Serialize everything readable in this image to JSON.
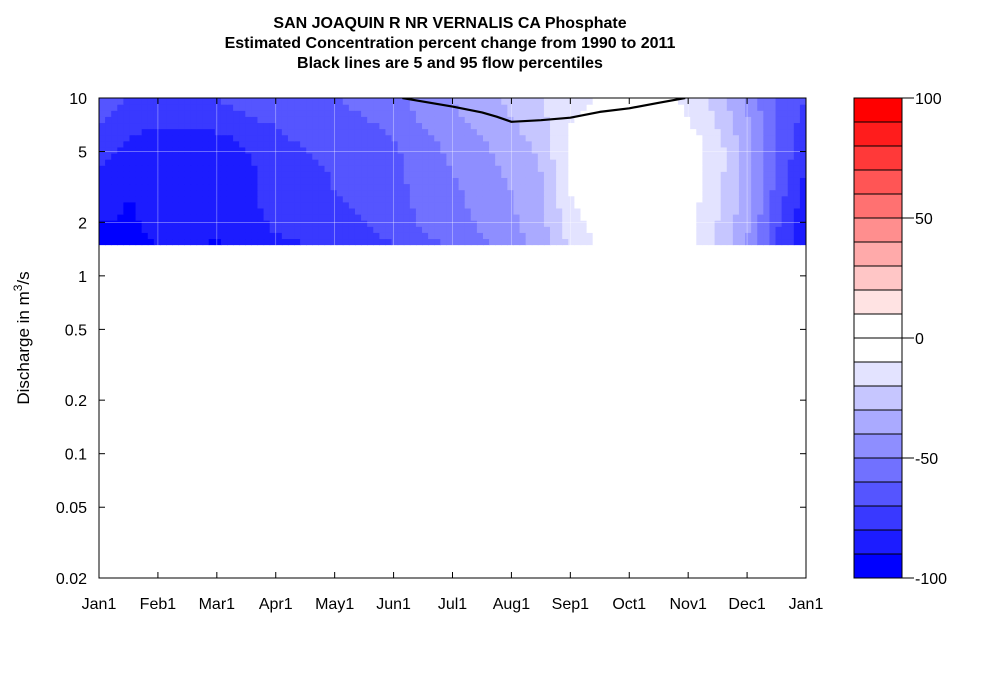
{
  "title_lines": [
    "SAN JOAQUIN R NR VERNALIS CA  Phosphate",
    "Estimated Concentration percent change from 1990 to 2011",
    "Black lines are 5 and 95 flow percentiles"
  ],
  "chart_data": {
    "type": "heatmap",
    "title": "SAN JOAQUIN R NR VERNALIS CA  Phosphate",
    "subtitle": [
      "Estimated Concentration percent change from 1990 to 2011",
      "Black lines are 5 and 95 flow percentiles"
    ],
    "xlabel": "",
    "ylabel": "Discharge in m³/s",
    "ylabel_parts": {
      "pre": "Discharge in m",
      "sup": "3",
      "post": "/s"
    },
    "y_scale": "log",
    "ylim": [
      0.02,
      10
    ],
    "x_ticks": [
      "Jan1",
      "Feb1",
      "Mar1",
      "Apr1",
      "May1",
      "Jun1",
      "Jul1",
      "Aug1",
      "Sep1",
      "Oct1",
      "Nov1",
      "Dec1",
      "Jan1"
    ],
    "y_ticks": [
      {
        "value": 10,
        "label": "10"
      },
      {
        "value": 5,
        "label": "5"
      },
      {
        "value": 2,
        "label": "2"
      },
      {
        "value": 1,
        "label": "1"
      },
      {
        "value": 0.5,
        "label": "0.5"
      },
      {
        "value": 0.2,
        "label": "0.2"
      },
      {
        "value": 0.1,
        "label": "0.1"
      },
      {
        "value": 0.05,
        "label": "0.05"
      },
      {
        "value": 0.02,
        "label": "0.02"
      }
    ],
    "grid": true,
    "data_discharge_range": [
      1.5,
      10
    ],
    "x_months": [
      0,
      0.5,
      1,
      1.5,
      2,
      2.5,
      3,
      3.5,
      4,
      4.5,
      5,
      5.5,
      6,
      6.5,
      7,
      7.5,
      8,
      8.5,
      9,
      9.5,
      10,
      10.5,
      11,
      11.5,
      12
    ],
    "y_discharge": [
      1.5,
      2,
      3,
      4,
      5,
      6,
      7,
      8,
      10
    ],
    "values": [
      [
        -93,
        -92,
        -90,
        -90,
        -91,
        -89,
        -82,
        -80,
        -76,
        -74,
        -70,
        -62,
        -59,
        -52,
        -44,
        -36,
        -18,
        -8,
        -5,
        -3,
        -7,
        -22,
        -40,
        -70,
        -90
      ],
      [
        -90,
        -91,
        -88,
        -86,
        -86,
        -84,
        -78,
        -76,
        -72,
        -70,
        -66,
        -58,
        -55,
        -48,
        -42,
        -34,
        -14,
        -5,
        -3,
        -2,
        -6,
        -20,
        -38,
        -68,
        -88
      ],
      [
        -84,
        -90,
        -88,
        -86,
        -86,
        -82,
        -76,
        -74,
        -70,
        -68,
        -64,
        -56,
        -52,
        -46,
        -40,
        -32,
        -10,
        -2,
        0,
        1,
        -4,
        -18,
        -34,
        -64,
        -84
      ],
      [
        -80,
        -86,
        -88,
        -88,
        -86,
        -82,
        -75,
        -72,
        -69,
        -67,
        -63,
        -55,
        -50,
        -44,
        -38,
        -30,
        -8,
        -1,
        2,
        2,
        -3,
        -16,
        -34,
        -62,
        -80
      ],
      [
        -76,
        -82,
        -86,
        -86,
        -85,
        -80,
        -74,
        -70,
        -68,
        -66,
        -62,
        -54,
        -48,
        -42,
        -36,
        -28,
        -7,
        0,
        3,
        3,
        -3,
        -16,
        -34,
        -62,
        -78
      ],
      [
        -72,
        -80,
        -82,
        -82,
        -82,
        -78,
        -72,
        -68,
        -66,
        -64,
        -60,
        -52,
        -46,
        -40,
        -34,
        -26,
        -8,
        -3,
        -1,
        -1,
        -5,
        -18,
        -36,
        -62,
        -76
      ],
      [
        -70,
        -78,
        -80,
        -80,
        -78,
        -74,
        -70,
        -66,
        -64,
        -62,
        -58,
        -50,
        -44,
        -38,
        -32,
        -24,
        -10,
        -5,
        -3,
        -3,
        -8,
        -20,
        -38,
        -62,
        -74
      ],
      [
        -68,
        -74,
        -76,
        -76,
        -74,
        -70,
        -66,
        -64,
        -62,
        -60,
        -56,
        -48,
        -42,
        -36,
        -30,
        -22,
        -12,
        -7,
        -5,
        -6,
        -10,
        -22,
        -40,
        -62,
        -72
      ],
      [
        -66,
        -70,
        -72,
        -72,
        -70,
        -66,
        -64,
        -62,
        -60,
        -58,
        -54,
        -46,
        -40,
        -34,
        -28,
        -20,
        -14,
        -9,
        -7,
        -8,
        -12,
        -24,
        -42,
        -62,
        -70
      ]
    ],
    "flow_percentile_95": {
      "x_months": [
        5.15,
        5.5,
        6.0,
        6.5,
        6.75,
        7.0,
        7.5,
        8.0,
        8.5,
        9.0,
        9.5,
        9.95
      ],
      "y_discharge": [
        10,
        9.55,
        8.95,
        8.3,
        7.85,
        7.35,
        7.5,
        7.75,
        8.35,
        8.75,
        9.4,
        10
      ]
    },
    "colorbar": {
      "range": [
        -100,
        100
      ],
      "step": 10,
      "ticks": [
        {
          "value": 100,
          "label": "100"
        },
        {
          "value": 50,
          "label": "50"
        },
        {
          "value": 0,
          "label": "0"
        },
        {
          "value": -50,
          "label": "-50"
        },
        {
          "value": -100,
          "label": "-100"
        }
      ]
    },
    "colors": {
      "negative_end": "#0000ff",
      "neutral": "#ffffff",
      "positive_end": "#ff0000",
      "contour": "#000000",
      "grid": "#ffffff"
    }
  }
}
